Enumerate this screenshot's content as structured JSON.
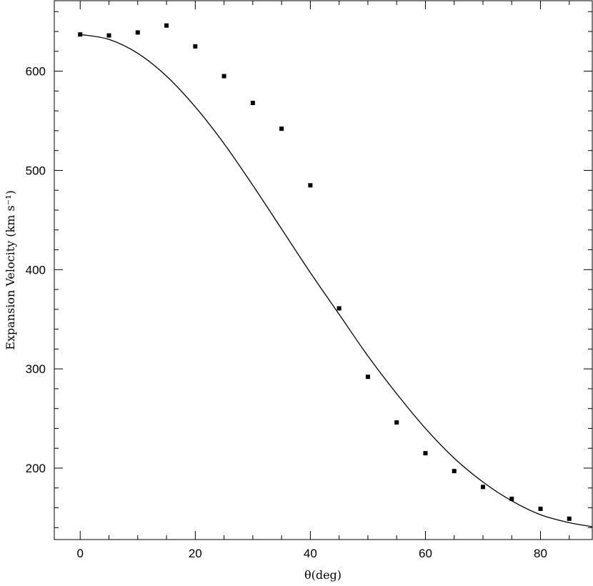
{
  "chart_data": {
    "type": "scatter",
    "xlabel": "θ(deg)",
    "ylabel": "Expansion Velocity (km s⁻¹)",
    "xlim": [
      -4.5,
      89
    ],
    "ylim": [
      128,
      671
    ],
    "xticks": [
      0,
      20,
      40,
      60,
      80
    ],
    "yticks": [
      200,
      300,
      400,
      500,
      600
    ],
    "grid": false,
    "legend": false,
    "series": [
      {
        "type": "scatter",
        "x": [
          0,
          5,
          10,
          15,
          20,
          25,
          30,
          35,
          40,
          45,
          50,
          55,
          60,
          65,
          70,
          75,
          80,
          85
        ],
        "y": [
          637,
          636,
          639,
          646,
          625,
          595,
          568,
          542,
          485,
          361,
          292,
          246,
          215,
          197,
          181,
          169,
          159,
          149
        ]
      },
      {
        "type": "line",
        "x": [
          0,
          5,
          10,
          15,
          20,
          25,
          30,
          35,
          40,
          45,
          50,
          55,
          60,
          65,
          70,
          75,
          80,
          85,
          89
        ],
        "y": [
          637,
          632,
          618,
          595,
          564,
          527,
          485,
          441,
          397,
          355,
          313,
          275,
          240,
          210,
          186,
          167,
          153,
          145,
          141
        ]
      }
    ]
  }
}
